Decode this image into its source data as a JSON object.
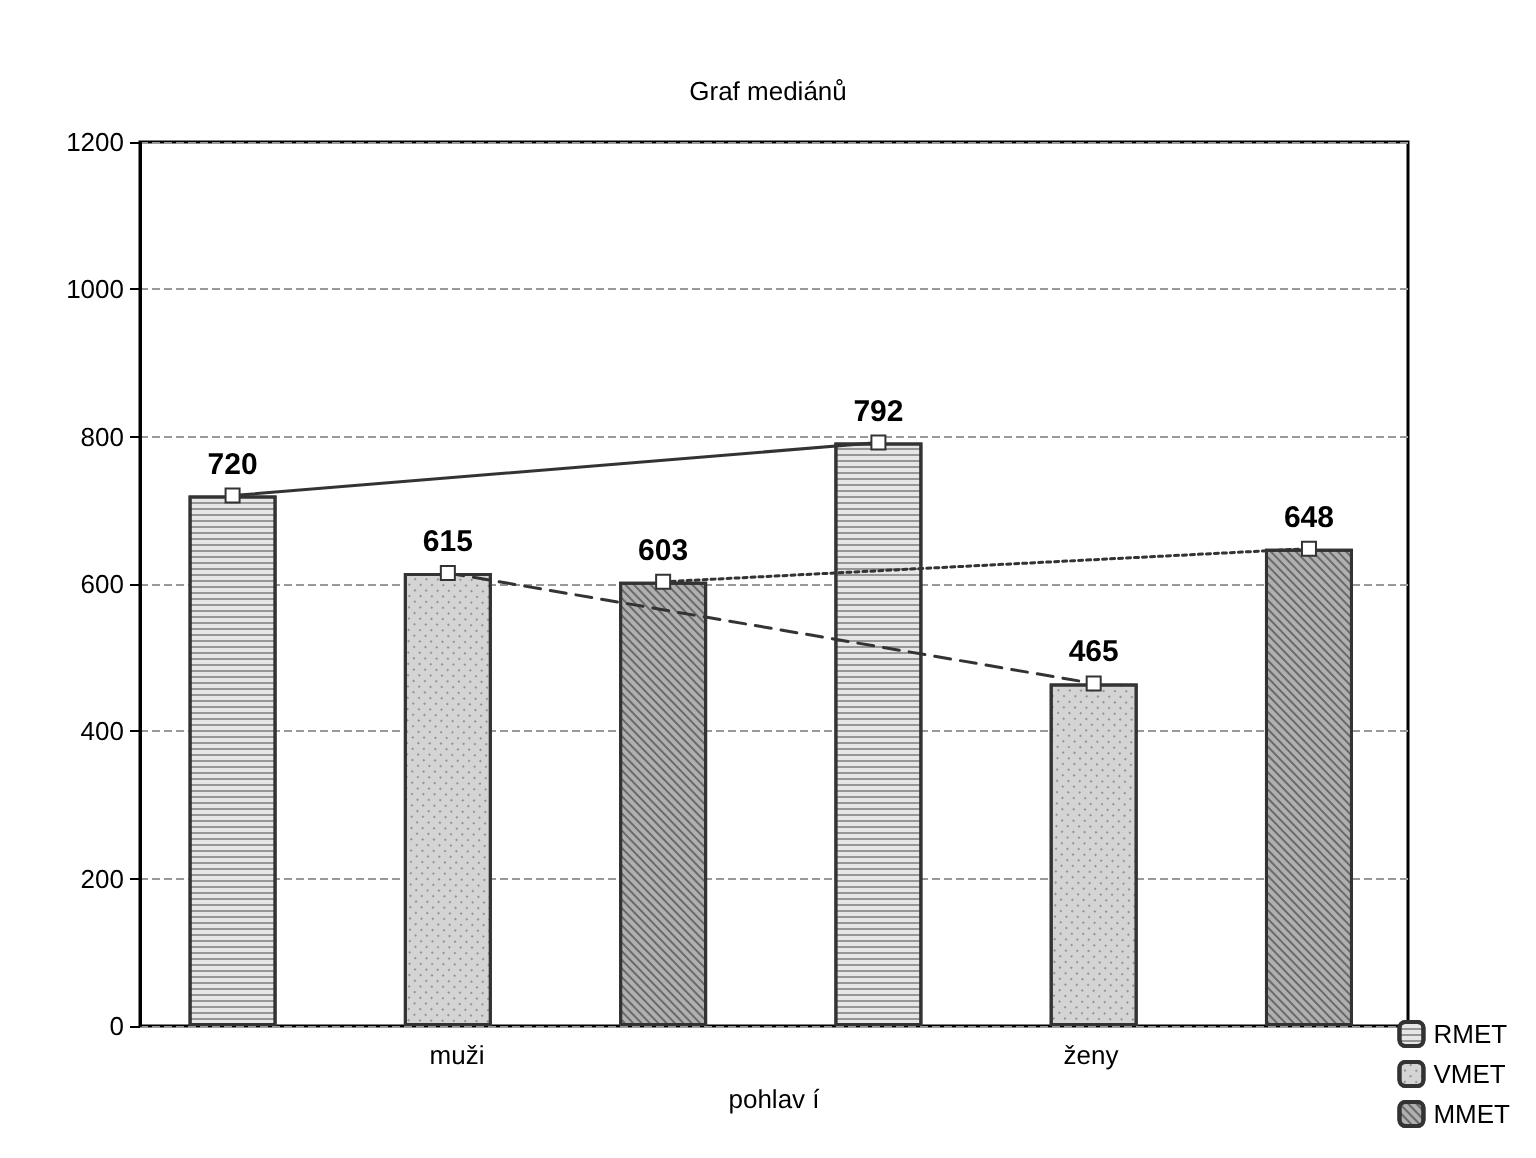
{
  "chart_data": {
    "type": "bar",
    "title": "Graf mediánů",
    "xlabel": "pohlav í",
    "categories": [
      "muži",
      "ženy"
    ],
    "series": [
      {
        "name": "RMET",
        "color": "#e6e6e6",
        "values": [
          720,
          792
        ],
        "line_style": "solid"
      },
      {
        "name": "VMET",
        "color": "#d4d4d4",
        "values": [
          615,
          465
        ],
        "line_style": "dashed"
      },
      {
        "name": "MMET",
        "color": "#b0b0b0",
        "values": [
          603,
          648
        ],
        "line_style": "dotted"
      }
    ],
    "ylim": [
      0,
      1200
    ],
    "yticks": [
      0,
      200,
      400,
      600,
      800,
      1000,
      1200
    ],
    "grid": "y",
    "legend": "bottom right",
    "data_labels": true,
    "marker": "square"
  }
}
